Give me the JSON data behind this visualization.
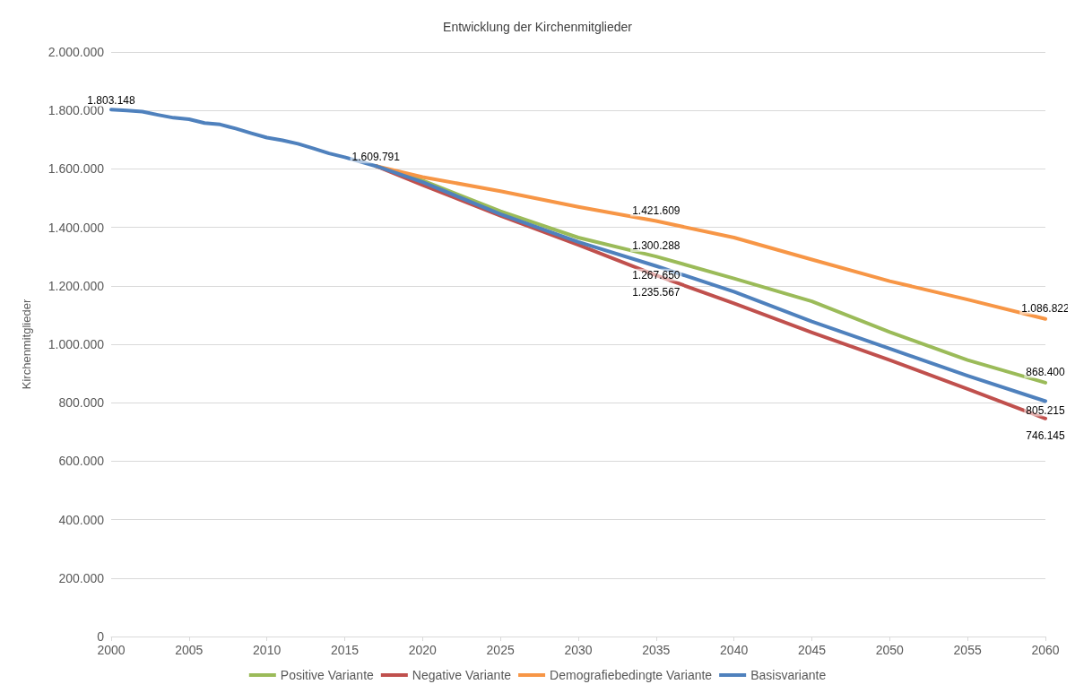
{
  "chart_data": {
    "type": "line",
    "title": "Entwicklung der Kirchenmitglieder",
    "ylabel": "Kirchenmitglieder",
    "xlim": [
      2000,
      2060
    ],
    "xticks": [
      2000,
      2005,
      2010,
      2015,
      2020,
      2025,
      2030,
      2035,
      2040,
      2045,
      2050,
      2055,
      2060
    ],
    "ylim": [
      0,
      2000000
    ],
    "yticks": [
      0,
      {
        "value": 200000,
        "label": "200.000"
      },
      {
        "value": 400000,
        "label": "400.000"
      },
      {
        "value": 600000,
        "label": "600.000"
      },
      {
        "value": 800000,
        "label": "800.000"
      },
      {
        "value": 1000000,
        "label": "1.000.000"
      },
      {
        "value": 1200000,
        "label": "1.200.000"
      },
      {
        "value": 1400000,
        "label": "1.400.000"
      },
      {
        "value": 1600000,
        "label": "1.600.000"
      },
      {
        "value": 1800000,
        "label": "1.800.000"
      },
      {
        "value": 2000000,
        "label": "2.000.000"
      }
    ],
    "grid": "y",
    "legend": "bottom",
    "marker": "none",
    "line_style": "solid",
    "series": [
      {
        "name": "Positive Variante",
        "color": "#9bbb59",
        "x": [
          2017,
          2020,
          2025,
          2030,
          2035,
          2040,
          2045,
          2050,
          2055,
          2060
        ],
        "values": [
          1609791,
          1560000,
          1455000,
          1365000,
          1300288,
          1225000,
          1147000,
          1042000,
          946000,
          868400
        ],
        "value_labels": [
          null,
          null,
          null,
          null,
          "1.300.288",
          null,
          null,
          null,
          null,
          "868.400"
        ]
      },
      {
        "name": "Negative Variante",
        "color": "#c0504d",
        "x": [
          2017,
          2020,
          2025,
          2030,
          2035,
          2040,
          2045,
          2050,
          2055,
          2060
        ],
        "values": [
          1609791,
          1545000,
          1440000,
          1340000,
          1235567,
          1140000,
          1040000,
          946000,
          847000,
          746145
        ],
        "value_labels": [
          null,
          null,
          null,
          null,
          "1.235.567",
          null,
          null,
          null,
          null,
          "746.145"
        ]
      },
      {
        "name": "Demografiebedingte Variante",
        "color": "#f79646",
        "x": [
          2017,
          2020,
          2025,
          2030,
          2035,
          2040,
          2045,
          2050,
          2055,
          2060
        ],
        "values": [
          1609791,
          1572000,
          1524000,
          1470000,
          1421609,
          1365000,
          1290000,
          1216000,
          1153000,
          1086822
        ],
        "value_labels": [
          null,
          null,
          null,
          null,
          "1.421.609",
          null,
          null,
          null,
          null,
          "1.086.822"
        ]
      },
      {
        "name": "Basisvariante",
        "color": "#4f81bd",
        "x": [
          2000,
          2001,
          2002,
          2003,
          2004,
          2005,
          2006,
          2007,
          2008,
          2009,
          2010,
          2011,
          2012,
          2013,
          2014,
          2015,
          2016,
          2017,
          2020,
          2025,
          2030,
          2035,
          2040,
          2045,
          2050,
          2055,
          2060
        ],
        "values": [
          1803148,
          1800000,
          1796000,
          1785000,
          1775000,
          1770000,
          1757000,
          1752000,
          1738000,
          1722000,
          1707000,
          1698000,
          1686000,
          1670000,
          1653000,
          1640000,
          1625000,
          1609791,
          1555000,
          1445000,
          1350000,
          1267650,
          1180000,
          1078000,
          985000,
          892000,
          805215
        ],
        "value_labels": [
          "1.803.148",
          null,
          null,
          null,
          null,
          null,
          null,
          null,
          null,
          null,
          null,
          null,
          null,
          null,
          null,
          null,
          null,
          "1.609.791",
          null,
          null,
          null,
          "1.267.650",
          null,
          null,
          null,
          null,
          "805.215"
        ]
      }
    ]
  }
}
